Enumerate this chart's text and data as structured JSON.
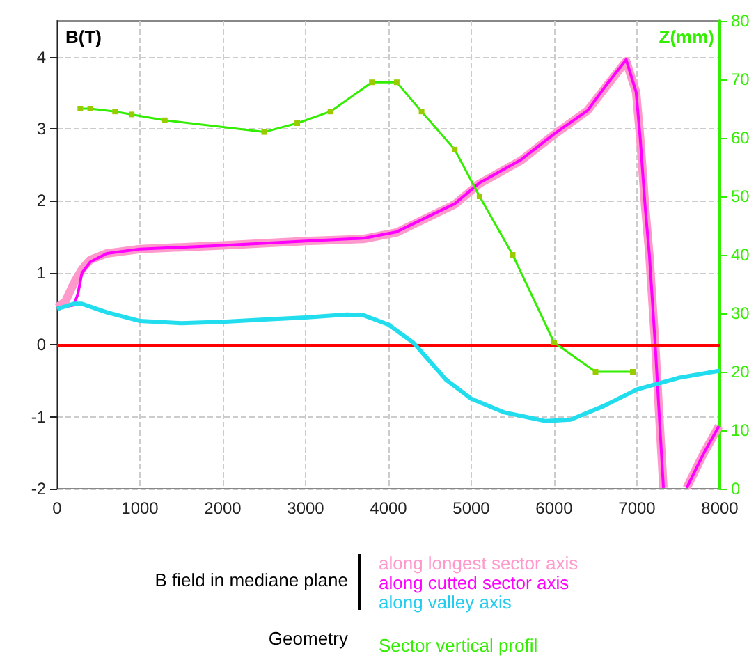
{
  "chart_data": {
    "type": "line",
    "ylabel": "B(T)",
    "y2label": "Z(mm)",
    "xlim": [
      0,
      8000
    ],
    "xticks": [
      0,
      1000,
      2000,
      3000,
      4000,
      5000,
      6000,
      7000,
      8000
    ],
    "ylim": [
      -2,
      4.5
    ],
    "yticks": [
      -2,
      -1,
      0,
      1,
      2,
      3,
      4
    ],
    "y2lim": [
      0,
      80
    ],
    "y2ticks": [
      0,
      10,
      20,
      30,
      40,
      50,
      60,
      70,
      80
    ],
    "grid": true,
    "legend": "bottom",
    "annotations": [
      "B field in mediane plane",
      "Geometry"
    ],
    "ref_lines": [
      {
        "axis": "y",
        "value": 0,
        "color": "#ff0000"
      }
    ],
    "series": [
      {
        "name": "along longest sector axis",
        "color": "#ff99cc",
        "marker": "none",
        "x": [
          0,
          100,
          200,
          300,
          400,
          600,
          1000,
          2000,
          3000,
          3700,
          4100,
          4800,
          5100,
          5600,
          6000,
          6400,
          6650,
          6870,
          6990,
          7040,
          7100,
          7150,
          7220,
          7270,
          7320,
          7450,
          7600,
          7800,
          7990
        ],
        "values": [
          0.52,
          0.6,
          0.85,
          1.05,
          1.18,
          1.27,
          1.33,
          1.38,
          1.44,
          1.47,
          1.56,
          1.95,
          2.24,
          2.56,
          2.92,
          3.25,
          3.62,
          3.94,
          3.51,
          2.86,
          1.9,
          1.25,
          0.01,
          -1.0,
          -1.99,
          null,
          -1.99,
          -1.52,
          -1.13
        ]
      },
      {
        "name": "along cutted sector axis",
        "color": "#ff00ff",
        "marker": "none",
        "x": [
          0,
          100,
          200,
          250,
          300,
          400,
          600,
          1000,
          2000,
          3000,
          3700,
          4100,
          4800,
          5100,
          5600,
          6000,
          6400,
          6650,
          6870,
          6990,
          7040,
          7100,
          7150,
          7220,
          7270,
          7320,
          7450,
          7600,
          7800,
          7990
        ],
        "values": [
          0.52,
          0.53,
          0.55,
          0.7,
          1.0,
          1.15,
          1.27,
          1.33,
          1.38,
          1.44,
          1.48,
          1.57,
          1.96,
          2.25,
          2.57,
          2.93,
          3.25,
          3.64,
          3.96,
          3.51,
          2.86,
          1.9,
          1.25,
          0.01,
          -1.0,
          -1.99,
          null,
          -1.99,
          -1.52,
          -1.13
        ]
      },
      {
        "name": "along valley axis",
        "color": "#22ddee",
        "marker": "none",
        "x": [
          0,
          200,
          300,
          600,
          1000,
          1500,
          2000,
          2500,
          3000,
          3500,
          3700,
          4000,
          4300,
          4700,
          5000,
          5400,
          5900,
          6200,
          6600,
          7000,
          7500,
          8000
        ],
        "values": [
          0.5,
          0.57,
          0.57,
          0.45,
          0.33,
          0.3,
          0.32,
          0.35,
          0.38,
          0.42,
          0.41,
          0.28,
          0.03,
          -0.49,
          -0.75,
          -0.94,
          -1.06,
          -1.04,
          -0.85,
          -0.62,
          -0.46,
          -0.36
        ]
      },
      {
        "name": "Sector vertical profil",
        "color": "#33ee00",
        "marker": "square",
        "axis": "y2",
        "x": [
          280,
          400,
          700,
          900,
          1300,
          2500,
          2900,
          3300,
          3800,
          4100,
          4400,
          4800,
          5100,
          5500,
          6000,
          6500,
          6950
        ],
        "values": [
          65,
          65,
          64.5,
          64,
          63,
          61,
          62.5,
          64.5,
          69.5,
          69.5,
          64.5,
          58,
          50,
          40,
          25,
          20,
          20
        ]
      }
    ]
  }
}
